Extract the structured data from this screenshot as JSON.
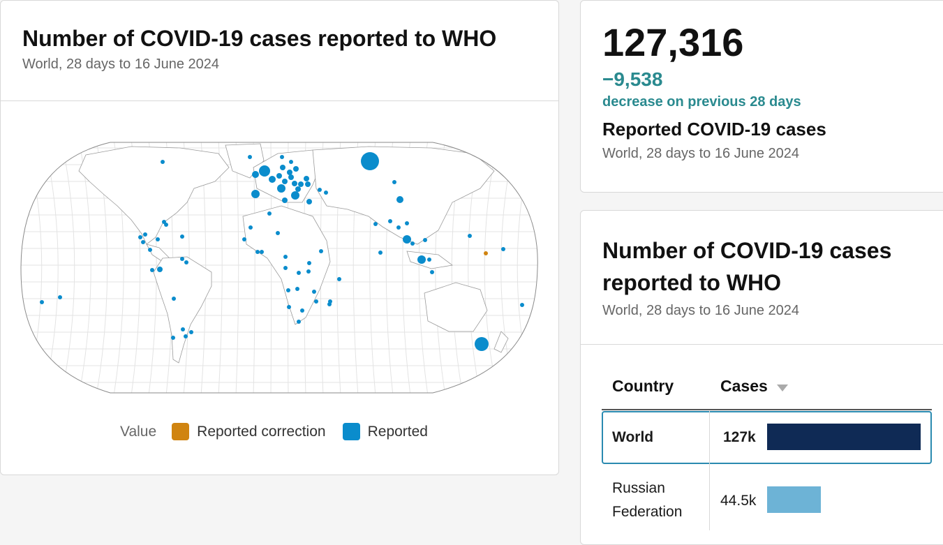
{
  "map_card": {
    "title": "Number of COVID-19 cases reported to WHO",
    "subtitle": "World, 28 days to 16 June 2024",
    "legend": {
      "label": "Value",
      "items": [
        {
          "label": "Reported correction",
          "color": "#d08410"
        },
        {
          "label": "Reported",
          "color": "#0a8ccc"
        }
      ]
    }
  },
  "summary": {
    "value": "127,316",
    "change": "−9,538",
    "change_note": "decrease on previous 28 days",
    "title": "Reported COVID-19 cases",
    "subtitle": "World, 28 days to 16 June 2024"
  },
  "table_card": {
    "title_line1": "Number of COVID-19 cases",
    "title_line2": "reported to WHO",
    "subtitle": "World, 28 days to 16 June 2024",
    "columns": [
      "Country",
      "Cases"
    ],
    "rows": [
      {
        "country": "World",
        "cases_label": "127k",
        "cases": 127316,
        "color": "#0f2a55"
      },
      {
        "country_line1": "Russian",
        "country_line2": "Federation",
        "cases_label": "44.5k",
        "cases": 44500,
        "color": "#6db3d6"
      }
    ]
  }
}
